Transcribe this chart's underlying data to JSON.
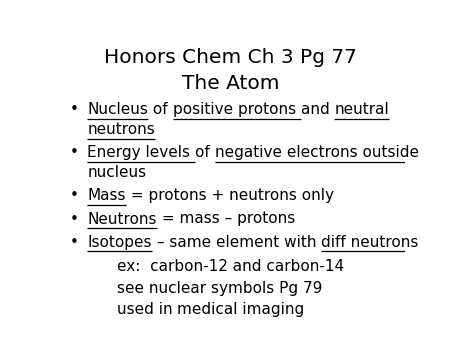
{
  "title_line1": "Honors Chem Ch 3 Pg 77",
  "title_line2": "The Atom",
  "background_color": "#ffffff",
  "text_color": "#000000",
  "title_fontsize": 14.5,
  "body_fontsize": 11.0,
  "bullet": "•",
  "items": [
    {
      "segments": [
        {
          "text": "Nucleus",
          "ul": true
        },
        {
          "text": " of ",
          "ul": false
        },
        {
          "text": "positive protons ",
          "ul": true
        },
        {
          "text": "and ",
          "ul": false
        },
        {
          "text": "neutral",
          "ul": true
        }
      ],
      "line2_segments": [
        {
          "text": "neutrons",
          "ul": true
        }
      ]
    },
    {
      "segments": [
        {
          "text": "Energy levels ",
          "ul": true
        },
        {
          "text": "of ",
          "ul": false
        },
        {
          "text": "negative electrons outside",
          "ul": true
        }
      ],
      "line2_segments": [
        {
          "text": "nucleus",
          "ul": false
        }
      ]
    },
    {
      "segments": [
        {
          "text": "Mass",
          "ul": true
        },
        {
          "text": " = protons + neutrons only",
          "ul": false
        }
      ],
      "line2_segments": []
    },
    {
      "segments": [
        {
          "text": "Neutrons",
          "ul": true
        },
        {
          "text": " = mass – protons",
          "ul": false
        }
      ],
      "line2_segments": []
    },
    {
      "segments": [
        {
          "text": "Isotopes",
          "ul": true
        },
        {
          "text": " – same element with ",
          "ul": false
        },
        {
          "text": "diff neutrons",
          "ul": true
        }
      ],
      "line2_segments": []
    }
  ],
  "sub_items": [
    [
      {
        "text": "ex:  carbon-12 and carbon-14",
        "ul": false
      }
    ],
    [
      {
        "text": "see nuclear symbols Pg 79",
        "ul": false
      }
    ],
    [
      {
        "text": "used in ",
        "ul": false
      },
      {
        "text": "medical imaging",
        "ul": true
      }
    ]
  ]
}
